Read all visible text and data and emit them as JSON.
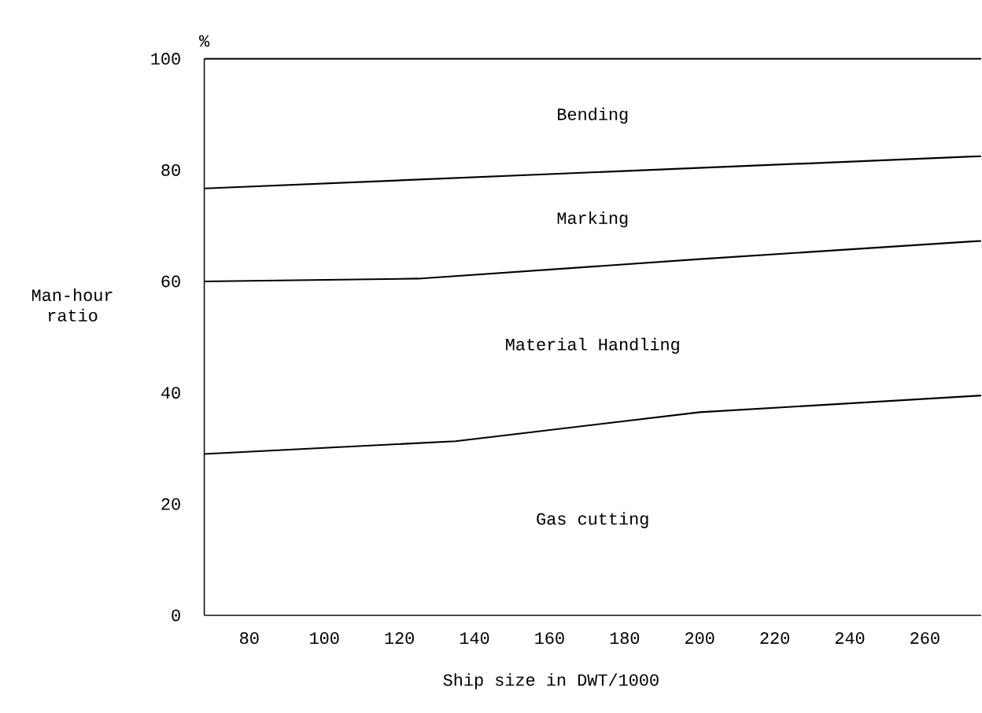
{
  "chart_data": {
    "type": "line",
    "xlabel": "Ship size in DWT/1000",
    "ylabel": "Man-hour ratio",
    "xlim": [
      68,
      275
    ],
    "ylim": [
      0,
      100
    ],
    "xticks": [
      80,
      100,
      120,
      140,
      160,
      180,
      200,
      220,
      240,
      260
    ],
    "yticks": [
      0,
      20,
      40,
      60,
      80,
      100
    ],
    "series": [
      {
        "color": "#000000",
        "x": [
          68,
          135,
          200,
          275
        ],
        "values": [
          29.0,
          31.3,
          36.5,
          39.5
        ]
      },
      {
        "color": "#000000",
        "x": [
          68,
          125,
          200,
          275
        ],
        "values": [
          60.0,
          60.5,
          64.0,
          67.3
        ]
      },
      {
        "color": "#000000",
        "x": [
          68,
          275
        ],
        "values": [
          76.7,
          82.5
        ]
      },
      {
        "color": "#000000",
        "x": [
          68,
          275
        ],
        "values": [
          100,
          100
        ]
      }
    ],
    "annotations": [
      "%",
      "Gas cutting",
      "Material Handling",
      "Marking",
      "Bending"
    ],
    "grid": false,
    "marker": "none",
    "line_style": "solid"
  }
}
